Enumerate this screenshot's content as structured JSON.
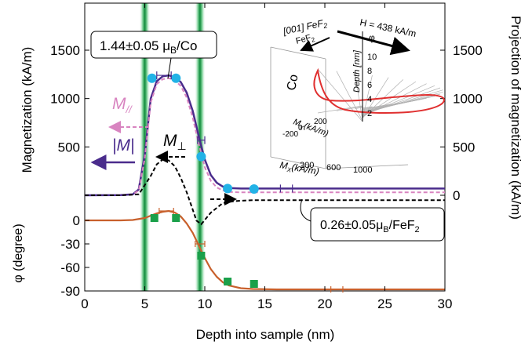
{
  "chart_data": [
    {
      "id": "magnetization",
      "type": "line",
      "ylabel": "Magnetization (kA/m)",
      "y2label": "Projection of magnetization (kA/m)",
      "ylim": [
        0,
        2000
      ],
      "xlim": [
        0,
        30
      ],
      "yticks": [
        500,
        1000,
        1500
      ],
      "y2ticks": [
        0,
        500,
        1000,
        1500
      ],
      "colors": {
        "M_total": "#4a2c8c",
        "M_par": "#d884c0",
        "M_perp": "#000000",
        "points": "#22b2e6",
        "error": "#4a2c8c"
      },
      "series": [
        {
          "name": "|M|",
          "style": "solid",
          "x": [
            0,
            3,
            4,
            4.5,
            5,
            5.5,
            6,
            6.5,
            7,
            7.5,
            8,
            8.5,
            9,
            9.5,
            10,
            10.5,
            11,
            11.5,
            12,
            13,
            15,
            20,
            25,
            30
          ],
          "y": [
            0,
            2,
            10,
            60,
            420,
            1000,
            1180,
            1230,
            1240,
            1220,
            1170,
            1060,
            870,
            610,
            370,
            210,
            130,
            90,
            75,
            70,
            70,
            70,
            70,
            70
          ]
        },
        {
          "name": "M//",
          "style": "dashed",
          "x": [
            0,
            3,
            4,
            4.5,
            5,
            5.5,
            6,
            6.5,
            7,
            7.5,
            8,
            8.5,
            9,
            9.5,
            10,
            10.5,
            11,
            11.5,
            12,
            13,
            15,
            20,
            25,
            30
          ],
          "y": [
            0,
            2,
            8,
            50,
            380,
            960,
            1150,
            1200,
            1210,
            1190,
            1130,
            1010,
            800,
            530,
            290,
            150,
            80,
            50,
            35,
            30,
            30,
            30,
            30,
            30
          ]
        },
        {
          "name": "M⊥",
          "style": "dashed",
          "x": [
            0,
            3,
            4.5,
            5.5,
            6,
            6.5,
            7,
            7.5,
            8,
            8.5,
            9,
            9.3,
            9.7,
            10.5,
            11.5,
            12.5,
            14,
            20,
            30
          ],
          "y": [
            0,
            0,
            10,
            200,
            320,
            370,
            360,
            300,
            180,
            30,
            -150,
            -260,
            -300,
            -180,
            -80,
            -60,
            -50,
            -50,
            -50
          ]
        }
      ],
      "points": {
        "x": [
          5.6,
          7.6,
          9.7,
          11.9,
          14.1
        ],
        "y": [
          1210,
          1210,
          400,
          70,
          65
        ]
      },
      "error_bars": [
        {
          "x": 6.6,
          "y": 1240,
          "dx": 0.6
        },
        {
          "x": 9.7,
          "y": 570,
          "dx": 0.3
        },
        {
          "x": 16.8,
          "y": 70,
          "dx": 0.5
        }
      ],
      "annotations": {
        "moment_co": "1.44±0.05 μ",
        "moment_co_sub": "B",
        "moment_co_unit": "/Co",
        "moment_fef2": "0.26±0.05μ",
        "moment_fef2_sub": "B",
        "moment_fef2_unit": "/FeF",
        "moment_fef2_sub2": "2",
        "m_par_label": "M",
        "m_par_sub": "//",
        "m_total_label": "|M|",
        "m_perp_label": "M",
        "m_perp_sub": "⊥"
      }
    },
    {
      "id": "phi",
      "type": "line",
      "ylabel": "φ (degree)",
      "xlabel": "Depth into sample (nm)",
      "xlim": [
        0,
        30
      ],
      "ylim": [
        -90,
        15
      ],
      "xticks": [
        0,
        5,
        10,
        15,
        20,
        25,
        30
      ],
      "yticks": [
        0,
        -30,
        -60,
        -90
      ],
      "colors": {
        "line": "#c8602c",
        "points": "#1aa04a",
        "error": "#c8602c"
      },
      "series": [
        {
          "name": "φ fit",
          "x": [
            0,
            3,
            4,
            5,
            5.5,
            6,
            6.5,
            7,
            7.5,
            8,
            8.5,
            9,
            9.5,
            10,
            10.5,
            11,
            11.5,
            12,
            13,
            14,
            16,
            20,
            25,
            30
          ],
          "y": [
            0,
            0,
            0.5,
            3,
            6,
            9,
            11,
            12,
            10,
            5,
            -4,
            -16,
            -32,
            -48,
            -62,
            -72,
            -79,
            -83,
            -86.5,
            -87.5,
            -88,
            -88,
            -88,
            -88
          ]
        }
      ],
      "points": {
        "x": [
          5.8,
          7.6,
          9.7,
          11.9,
          14.1
        ],
        "y": [
          3,
          3,
          -45,
          -78,
          -81
        ]
      },
      "error_bars": [
        {
          "x": 6.8,
          "y": 12,
          "dx": 0.6
        },
        {
          "x": 9.6,
          "y": -30,
          "dx": 0.4
        },
        {
          "x": 21.0,
          "y": -88,
          "dx": 0.5
        }
      ]
    }
  ],
  "interfaces": {
    "x": [
      5,
      9.6
    ],
    "color": "#1f9a4a"
  },
  "inset": {
    "label_fef2_dir": "[001] FeF",
    "label_fef2_dir_sub": "2",
    "field_label": "H = 438 kA/m",
    "label_fef2": "FeF",
    "label_fef2_sub": "2",
    "label_co": "Co",
    "depth_axis_label": "Depth [nm]",
    "phi_label": "φ",
    "depth_ticks": [
      "10",
      "8",
      "6",
      "4",
      "2"
    ],
    "my_label": "M",
    "my_sub": "Y",
    "my_unit": "(kA/m)",
    "my_ticks": [
      "200",
      "0",
      "-200"
    ],
    "mx_label": "M",
    "mx_sub": "X",
    "mx_unit": "(kA/m)",
    "mx_ticks": [
      "200",
      "600",
      "1000"
    ],
    "outline_color": "#e03030"
  }
}
